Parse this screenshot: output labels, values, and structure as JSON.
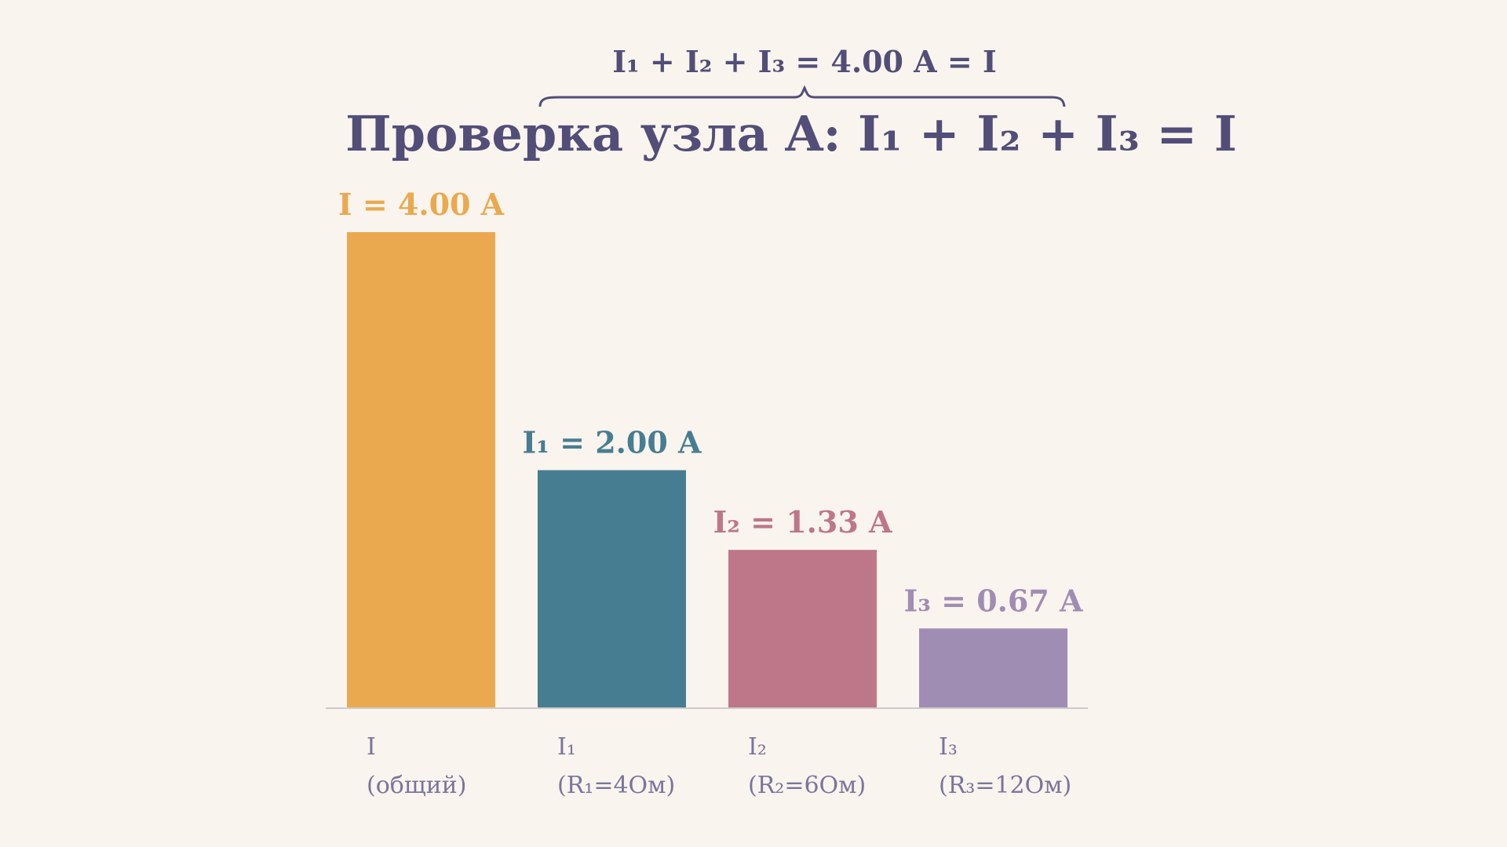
{
  "chart_data": {
    "type": "bar",
    "title": "Проверка узла A: I₁ + I₂ + I₃ = I",
    "brace_label": "I₁ + I₂ + I₃ = 4.00 A  = I",
    "categories": [
      "I (общий)",
      "I₁ (R₁=4Ом)",
      "I₂ (R₂=6Ом)",
      "I₃ (R₃=12Ом)"
    ],
    "category_lines": [
      [
        "I",
        "(общий)"
      ],
      [
        "I₁",
        "(R₁=4Ом)"
      ],
      [
        "I₂",
        "(R₂=6Ом)"
      ],
      [
        "I₃",
        "(R₃=12Ом)"
      ]
    ],
    "values": [
      4.0,
      2.0,
      1.33,
      0.67
    ],
    "value_labels": [
      "I = 4.00 A",
      "I₁ = 2.00 A",
      "I₂ = 1.33 A",
      "I₃ = 0.67 A"
    ],
    "colors": [
      "#eba94f",
      "#477d91",
      "#bd7789",
      "#a08db3"
    ],
    "xlabel": "",
    "ylabel": "",
    "ylim": [
      0,
      4.0
    ],
    "grid": false,
    "legend": "none"
  }
}
